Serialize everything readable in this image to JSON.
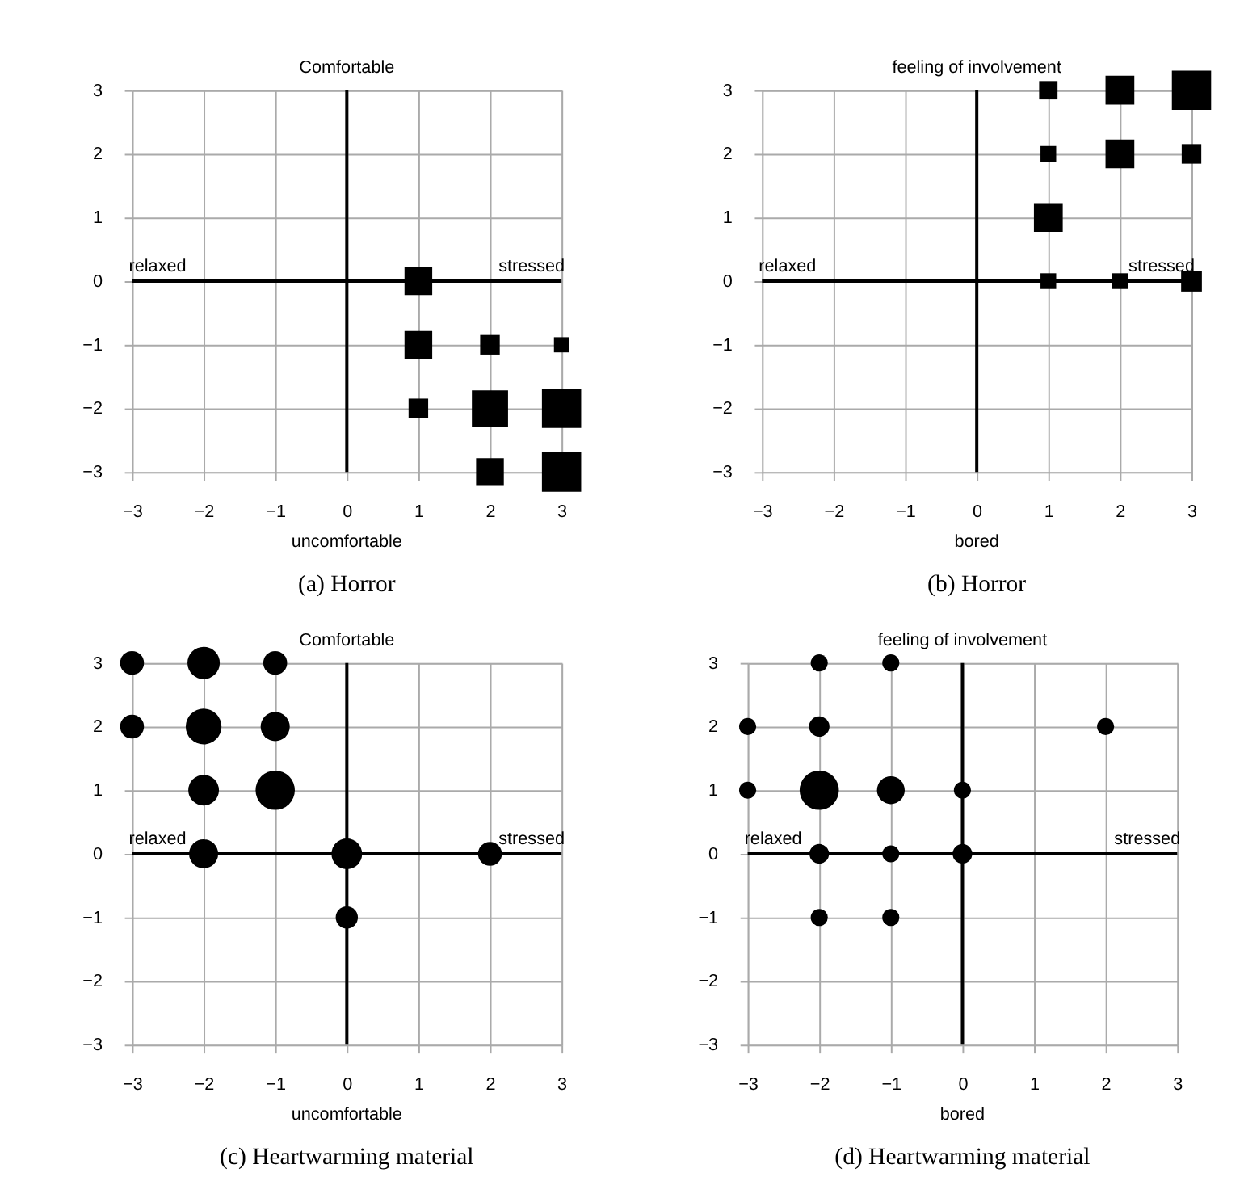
{
  "chart_data": [
    {
      "type": "bubble",
      "title": "(a) Horror",
      "ylabel": "Comfortable",
      "annotations": [
        "uncomfortable",
        "relaxed",
        "stressed"
      ],
      "marker": "square",
      "grid": true,
      "xlim": [
        -3,
        3
      ],
      "ylim": [
        -3,
        3
      ],
      "xticks": [
        -3,
        -2,
        -1,
        0,
        1,
        2,
        3
      ],
      "yticks": [
        -3,
        -2,
        -1,
        0,
        1,
        2,
        3
      ],
      "series": [
        {
          "color": "#000000",
          "x": [
            1,
            1,
            2,
            3,
            1,
            2,
            3,
            2,
            3
          ],
          "values": [
            0,
            -1,
            -1,
            -1,
            -2,
            -2,
            -2,
            -3,
            -3
          ],
          "sizes": [
            0.5,
            0.5,
            0.25,
            0.15,
            0.25,
            0.85,
            1,
            0.5,
            1
          ]
        }
      ]
    },
    {
      "type": "bubble",
      "title": "(b) Horror",
      "ylabel": "feeling of involvement",
      "annotations": [
        "bored",
        "relaxed",
        "stressed"
      ],
      "marker": "square",
      "grid": true,
      "xlim": [
        -3,
        3
      ],
      "ylim": [
        -3,
        3
      ],
      "xticks": [
        -3,
        -2,
        -1,
        0,
        1,
        2,
        3
      ],
      "yticks": [
        -3,
        -2,
        -1,
        0,
        1,
        2,
        3
      ],
      "series": [
        {
          "color": "#000000",
          "x": [
            1,
            2,
            3,
            1,
            2,
            3,
            1,
            1,
            2,
            3
          ],
          "values": [
            3,
            3,
            3,
            2,
            2,
            2,
            1,
            0,
            0,
            0
          ],
          "sizes": [
            0.22,
            0.54,
            1,
            0.16,
            0.54,
            0.25,
            0.54,
            0.16,
            0.16,
            0.28
          ]
        }
      ]
    },
    {
      "type": "bubble",
      "title": "(c) Heartwarming material",
      "ylabel": "Comfortable",
      "annotations": [
        "uncomfortable",
        "relaxed",
        "stressed"
      ],
      "marker": "circle",
      "grid": true,
      "xlim": [
        -3,
        3
      ],
      "ylim": [
        -3,
        3
      ],
      "xticks": [
        -3,
        -2,
        -1,
        0,
        1,
        2,
        3
      ],
      "yticks": [
        -3,
        -2,
        -1,
        0,
        1,
        2,
        3
      ],
      "series": [
        {
          "color": "#000000",
          "x": [
            -3,
            -2,
            -1,
            -3,
            -2,
            -1,
            -2,
            -1,
            -2,
            0,
            2,
            0
          ],
          "values": [
            3,
            3,
            3,
            2,
            2,
            2,
            1,
            1,
            0,
            0,
            0,
            -1
          ],
          "sizes": [
            0.37,
            0.68,
            0.37,
            0.37,
            0.83,
            0.55,
            0.61,
            1,
            0.55,
            0.61,
            0.37,
            0.32
          ]
        }
      ]
    },
    {
      "type": "bubble",
      "title": "(d) Heartwarming material",
      "ylabel": "feeling of involvement",
      "annotations": [
        "bored",
        "relaxed",
        "stressed"
      ],
      "marker": "circle",
      "grid": true,
      "xlim": [
        -3,
        3
      ],
      "ylim": [
        -3,
        3
      ],
      "xticks": [
        -3,
        -2,
        -1,
        0,
        1,
        2,
        3
      ],
      "yticks": [
        -3,
        -2,
        -1,
        0,
        1,
        2,
        3
      ],
      "series": [
        {
          "color": "#000000",
          "x": [
            -2,
            -1,
            -3,
            -2,
            2,
            -3,
            -2,
            -1,
            0,
            -2,
            -1,
            0,
            -2,
            -1
          ],
          "values": [
            3,
            3,
            2,
            2,
            2,
            1,
            1,
            1,
            1,
            0,
            0,
            0,
            -1,
            -1
          ],
          "sizes": [
            0.19,
            0.19,
            0.19,
            0.27,
            0.19,
            0.19,
            1,
            0.5,
            0.19,
            0.25,
            0.19,
            0.25,
            0.19,
            0.19
          ]
        }
      ]
    }
  ]
}
